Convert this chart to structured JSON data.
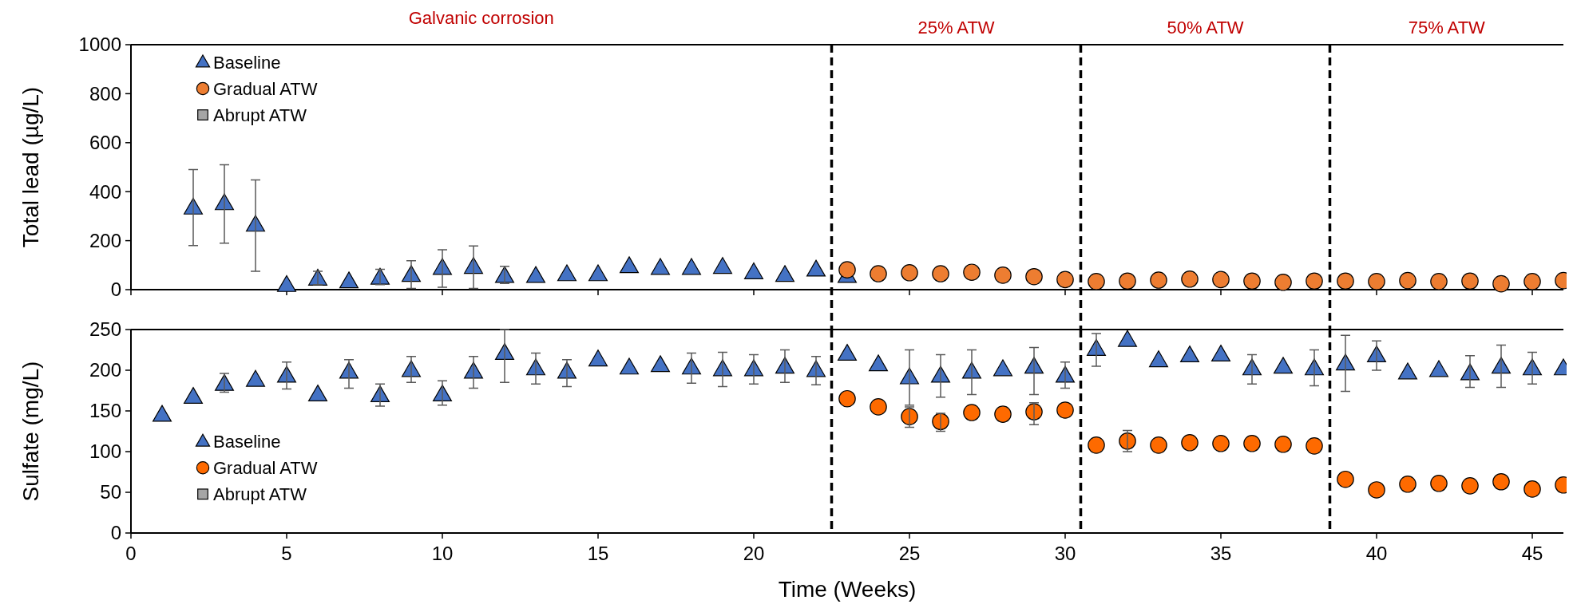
{
  "chart_data": [
    {
      "type": "scatter",
      "ylabel": "Total lead (µg/L)",
      "annotations": [
        "Galvanic corrosion",
        "25% ATW",
        "50% ATW",
        "75% ATW"
      ],
      "x": [
        2,
        3,
        4,
        5,
        6,
        7,
        8,
        9,
        10,
        11,
        12,
        13,
        14,
        15,
        16,
        17,
        18,
        19,
        20,
        21,
        22,
        23,
        24,
        25,
        26,
        27,
        28,
        29,
        30,
        31,
        32,
        33,
        34,
        35,
        36,
        37,
        38,
        39,
        40,
        41,
        42,
        43,
        44,
        45,
        46
      ],
      "xlim": [
        0,
        46
      ],
      "xticks": [
        0,
        5,
        10,
        15,
        20,
        25,
        30,
        35,
        40,
        45
      ],
      "ylim": [
        0,
        1000
      ],
      "yticks": [
        0,
        200,
        400,
        600,
        800,
        1000
      ],
      "tick_labels": "y",
      "legend": "top left",
      "grid": false,
      "ref_lines": [
        {
          "axis": "x",
          "value": 22.5,
          "line_style": "dashed",
          "color": "#000000"
        },
        {
          "axis": "x",
          "value": 30.5,
          "line_style": "dashed",
          "color": "#000000"
        },
        {
          "axis": "x",
          "value": 38.5,
          "line_style": "dashed",
          "color": "#000000"
        }
      ],
      "series": [
        {
          "name": "Baseline",
          "color": "#4472c4",
          "marker": "triangle",
          "values": [
            334,
            352,
            264,
            18,
            44,
            33,
            48,
            59,
            88,
            92,
            55,
            55,
            62,
            62,
            95,
            88,
            88,
            92,
            70,
            59,
            81,
            55,
            null,
            null,
            null,
            null,
            null,
            null,
            null,
            null,
            null,
            null,
            null,
            null,
            null,
            null,
            null,
            null,
            null,
            null,
            null,
            null,
            null,
            null,
            null
          ],
          "errors": [
            [
              180,
              490
            ],
            [
              190,
              510
            ],
            [
              75,
              448
            ],
            null,
            [
              20,
              75
            ],
            null,
            [
              20,
              83
            ],
            [
              5,
              118
            ],
            [
              10,
              163
            ],
            [
              5,
              178
            ],
            [
              25,
              95
            ],
            null,
            null,
            null,
            null,
            null,
            null,
            null,
            null,
            null,
            null,
            null,
            null,
            null,
            null,
            null,
            null,
            null,
            null,
            null,
            null,
            null,
            null,
            null,
            null,
            null,
            null,
            null,
            null,
            null,
            null,
            null,
            null,
            null,
            null
          ]
        },
        {
          "name": "Gradual ATW",
          "color": "#ed7d31",
          "marker": "circle",
          "values": [
            null,
            null,
            null,
            null,
            null,
            null,
            null,
            null,
            null,
            null,
            null,
            null,
            null,
            null,
            null,
            null,
            null,
            null,
            null,
            null,
            null,
            81,
            65,
            69,
            65,
            71,
            59,
            53,
            41,
            33,
            35,
            39,
            43,
            41,
            35,
            30,
            35,
            35,
            33,
            37,
            33,
            35,
            24,
            33,
            37
          ]
        },
        {
          "name": "Abrupt ATW",
          "color": "#a5a5a5",
          "marker": "square",
          "values": [
            null,
            null,
            null,
            null,
            null,
            null,
            null,
            null,
            null,
            null,
            null,
            null,
            null,
            null,
            null,
            null,
            null,
            null,
            null,
            null,
            null,
            null,
            null,
            null,
            null,
            null,
            null,
            null,
            null,
            null,
            null,
            null,
            null,
            null,
            null,
            null,
            null,
            null,
            null,
            null,
            null,
            null,
            null,
            null,
            null
          ]
        }
      ]
    },
    {
      "type": "scatter",
      "xlabel": "Time (Weeks)",
      "ylabel": "Sulfate (mg/L)",
      "x": [
        1,
        2,
        3,
        4,
        5,
        6,
        7,
        8,
        9,
        10,
        11,
        12,
        13,
        14,
        15,
        16,
        17,
        18,
        19,
        20,
        21,
        22,
        23,
        24,
        25,
        26,
        27,
        28,
        29,
        30,
        31,
        32,
        33,
        34,
        35,
        36,
        37,
        38,
        39,
        40,
        41,
        42,
        43,
        44,
        45,
        46
      ],
      "xlim": [
        0,
        46
      ],
      "xticks": [
        0,
        5,
        10,
        15,
        20,
        25,
        30,
        35,
        40,
        45
      ],
      "ylim": [
        0,
        250
      ],
      "yticks": [
        0,
        50,
        100,
        150,
        200,
        250
      ],
      "legend": "left",
      "grid": false,
      "ref_lines": [
        {
          "axis": "x",
          "value": 22.5,
          "line_style": "dashed",
          "color": "#000000"
        },
        {
          "axis": "x",
          "value": 30.5,
          "line_style": "dashed",
          "color": "#000000"
        },
        {
          "axis": "x",
          "value": 38.5,
          "line_style": "dashed",
          "color": "#000000"
        }
      ],
      "series": [
        {
          "name": "Baseline",
          "color": "#4472c4",
          "marker": "triangle",
          "values": [
            145,
            167,
            183,
            188,
            193,
            170,
            198,
            169,
            200,
            170,
            198,
            221,
            202,
            198,
            213,
            203,
            206,
            203,
            201,
            201,
            204,
            200,
            220,
            207,
            191,
            193,
            198,
            201,
            204,
            193,
            226,
            237,
            212,
            218,
            219,
            202,
            204,
            202,
            208,
            218,
            197,
            200,
            196,
            204,
            202,
            202
          ],
          "errors": [
            null,
            null,
            [
              173,
              196
            ],
            null,
            [
              177,
              210
            ],
            null,
            [
              178,
              213
            ],
            [
              156,
              183
            ],
            [
              185,
              217
            ],
            [
              157,
              187
            ],
            [
              178,
              217
            ],
            [
              185,
              250
            ],
            [
              183,
              221
            ],
            [
              180,
              213
            ],
            null,
            null,
            null,
            [
              184,
              221
            ],
            [
              180,
              222
            ],
            [
              183,
              219
            ],
            [
              185,
              225
            ],
            [
              182,
              217
            ],
            null,
            null,
            [
              157,
              225
            ],
            [
              167,
              219
            ],
            [
              170,
              225
            ],
            null,
            [
              170,
              228
            ],
            [
              178,
              210
            ],
            [
              205,
              245
            ],
            null,
            null,
            null,
            null,
            [
              183,
              219
            ],
            null,
            [
              181,
              225
            ],
            [
              174,
              243
            ],
            [
              200,
              236
            ],
            null,
            null,
            [
              179,
              218
            ],
            [
              179,
              231
            ],
            [
              183,
              222
            ],
            null
          ]
        },
        {
          "name": "Gradual ATW",
          "color": "#fe6a00",
          "marker": "circle",
          "values": [
            null,
            null,
            null,
            null,
            null,
            null,
            null,
            null,
            null,
            null,
            null,
            null,
            null,
            null,
            null,
            null,
            null,
            null,
            null,
            null,
            null,
            null,
            165,
            155,
            143,
            137,
            148,
            146,
            149,
            151,
            108,
            113,
            108,
            111,
            110,
            110,
            109,
            107,
            66,
            53,
            60,
            61,
            58,
            63,
            54,
            59
          ],
          "errors": [
            null,
            null,
            null,
            null,
            null,
            null,
            null,
            null,
            null,
            null,
            null,
            null,
            null,
            null,
            null,
            null,
            null,
            null,
            null,
            null,
            null,
            null,
            null,
            null,
            [
              130,
              155
            ],
            [
              125,
              147
            ],
            null,
            null,
            [
              133,
              160
            ],
            null,
            null,
            [
              100,
              126
            ],
            null,
            null,
            null,
            null,
            null,
            null,
            null,
            null,
            null,
            null,
            null,
            null,
            null,
            null
          ]
        },
        {
          "name": "Abrupt ATW",
          "color": "#a5a5a5",
          "marker": "square",
          "values": [
            null,
            null,
            null,
            null,
            null,
            null,
            null,
            null,
            null,
            null,
            null,
            null,
            null,
            null,
            null,
            null,
            null,
            null,
            null,
            null,
            null,
            null,
            null,
            null,
            null,
            null,
            null,
            null,
            null,
            null,
            null,
            null,
            null,
            null,
            null,
            null,
            null,
            null,
            null,
            null,
            null,
            null,
            null,
            null,
            null,
            null
          ]
        }
      ]
    }
  ]
}
